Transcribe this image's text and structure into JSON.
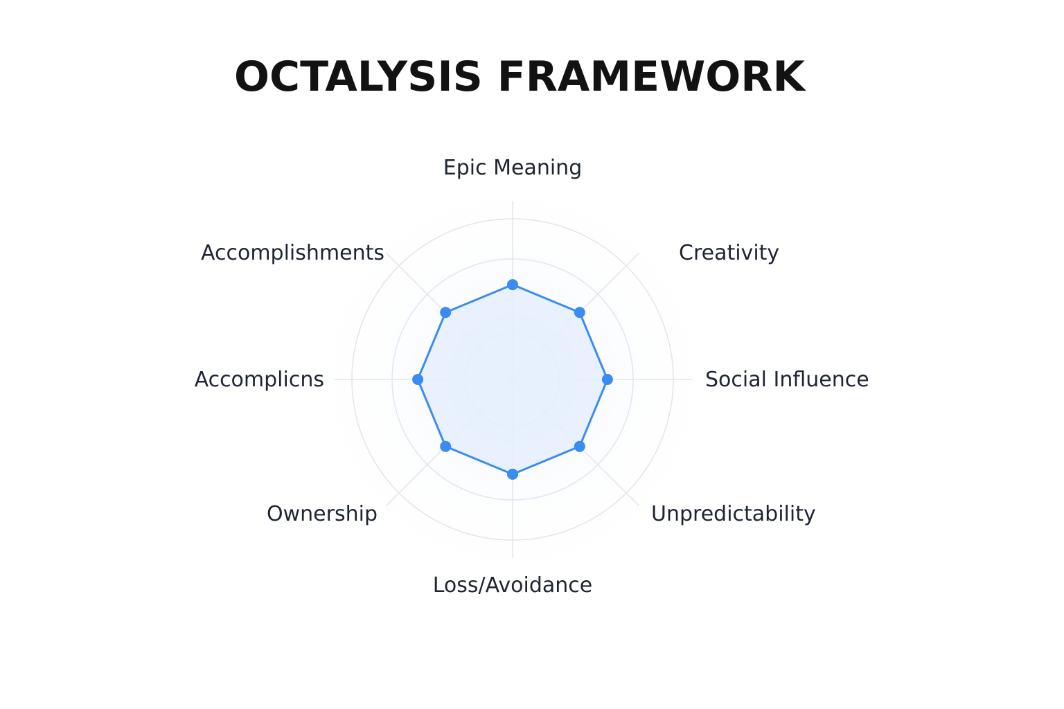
{
  "title": "OCTALYSIS FRAMEWORK",
  "colors": {
    "series": "#3b8cf0",
    "fill": "#e4effd",
    "grid": "#e3e6ef",
    "text": "#1f2433"
  },
  "chart_data": {
    "type": "radar",
    "title": "OCTALYSIS FRAMEWORK",
    "axes": [
      "Epic Meaning",
      "Creativity",
      "Social Influence",
      "Unpredictability",
      "Loss/Avoidance",
      "Ownership",
      "Accomplicns",
      "Accomplishments"
    ],
    "rlim": [
      0,
      1
    ],
    "grid_rings": 3,
    "grid": true,
    "legend": "none",
    "series": [
      {
        "values": [
          0.59,
          0.59,
          0.59,
          0.59,
          0.59,
          0.59,
          0.59,
          0.59
        ]
      }
    ]
  }
}
